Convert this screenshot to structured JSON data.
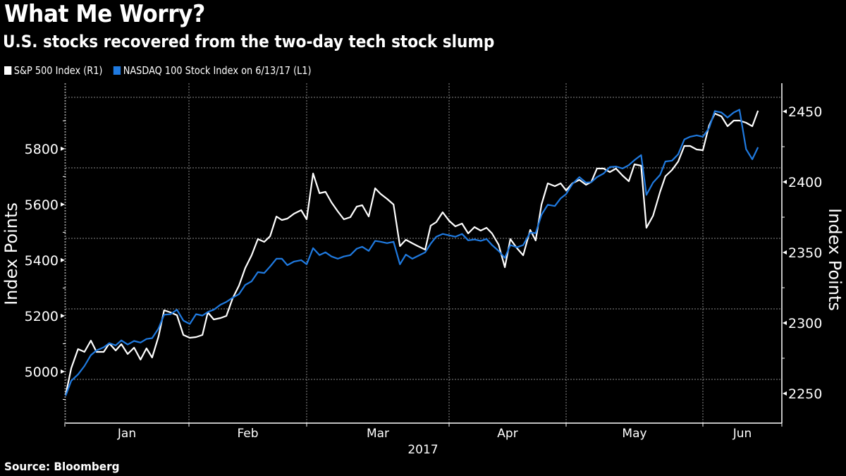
{
  "header": {
    "title": "What Me Worry?",
    "subtitle": "U.S. stocks recovered from the two-day tech stock slump"
  },
  "legend": [
    {
      "label": "S&P 500 Index (R1)",
      "color": "#ffffff"
    },
    {
      "label": "NASDAQ 100 Stock Index on 6/13/17 (L1)",
      "color": "#1f7ae0"
    }
  ],
  "footer": {
    "source": "Source: Bloomberg"
  },
  "chart_data": {
    "type": "line",
    "title": "What Me Worry?",
    "subtitle": "U.S. stocks recovered from the two-day tech stock slump",
    "background": "#000000",
    "grid": true,
    "legend_position": "top-left",
    "x": {
      "unit": "days since Jan 1, 2017",
      "range": [
        0,
        166
      ],
      "tick_labels": [
        "Jan",
        "Feb",
        "Mar",
        "Apr",
        "May",
        "Jun"
      ],
      "month_starts": [
        0,
        31,
        59,
        90,
        120,
        151
      ],
      "year_label": "2017",
      "values": [
        0.2,
        1.6,
        3.3,
        4.9,
        6.5,
        7.9,
        9.7,
        11.1,
        12.7,
        14.1,
        15.7,
        17.3,
        18.9,
        20.4,
        21.8,
        23.4,
        24.8,
        26.4,
        28.0,
        29.6,
        31.2,
        32.7,
        34.2,
        35.5,
        36.9,
        38.5,
        39.9,
        41.4,
        42.9,
        44.4,
        45.9,
        47.4,
        48.9,
        50.3,
        51.8,
        53.1,
        54.4,
        56.0,
        57.7,
        59.0,
        60.4,
        61.8,
        63.1,
        64.4,
        65.8,
        67.1,
        68.5,
        69.9,
        71.1,
        72.5,
        73.9,
        75.1,
        76.5,
        77.9,
        79.3,
        80.6,
        82.0,
        83.2,
        84.8,
        86.0,
        87.2,
        88.6,
        90.0,
        91.6,
        93.3,
        94.9,
        96.5,
        98.1,
        99.6,
        101.0,
        102.7,
        104.3,
        105.7,
        107.4,
        109.0,
        110.8,
        112.2,
        113.7,
        115.3,
        117.1,
        118.6,
        120.0,
        121.4,
        123.0,
        124.5,
        125.7,
        127.0,
        128.5,
        129.9,
        131.3,
        132.8,
        134.2,
        135.5,
        137.0,
        138.2,
        139.7,
        141.3,
        142.5,
        144.0,
        145.4,
        146.8,
        148.1,
        149.6,
        151.0,
        152.4,
        153.7,
        155.2,
        156.6,
        158.0,
        159.3,
        160.8,
        162.2,
        163.5
      ]
    },
    "y_left": {
      "label": "Index Points",
      "range": [
        4815,
        6035
      ],
      "ticks": [
        5000,
        5200,
        5400,
        5600,
        5800
      ],
      "minor_ticks": [
        4900,
        5100,
        5300,
        5500,
        5700,
        5900
      ]
    },
    "y_right": {
      "label": "Index Points",
      "range": [
        2229,
        2470
      ],
      "ticks": [
        2250,
        2300,
        2350,
        2400,
        2450
      ],
      "minor_ticks": [
        2275,
        2325,
        2375,
        2425
      ],
      "gridlines": [
        2260,
        2310,
        2360,
        2410,
        2460
      ]
    },
    "series": [
      {
        "name": "S&P 500 Index (R1)",
        "axis": "right",
        "color": "#ffffff",
        "values": [
          2249,
          2268,
          2281.5,
          2279.5,
          2287.5,
          2279.5,
          2279.5,
          2285.5,
          2280.5,
          2285,
          2278,
          2282.5,
          2274,
          2282,
          2275.5,
          2290.5,
          2309,
          2307.5,
          2305.5,
          2291.5,
          2289.5,
          2290,
          2291.5,
          2307.5,
          2302.5,
          2303.5,
          2305,
          2317.5,
          2326.5,
          2339,
          2348,
          2359.5,
          2357.5,
          2361.5,
          2375.5,
          2373,
          2374,
          2377.5,
          2380,
          2373.5,
          2406,
          2392,
          2393,
          2385.5,
          2379,
          2373.5,
          2375,
          2382.5,
          2383.5,
          2375.5,
          2395.5,
          2391.5,
          2388,
          2384,
          2354.5,
          2359,
          2356.5,
          2354.5,
          2352,
          2369,
          2371.5,
          2378.5,
          2372.5,
          2368.5,
          2370.5,
          2363.5,
          2368,
          2365.5,
          2367.5,
          2363.5,
          2355.5,
          2339.5,
          2359.5,
          2353,
          2348,
          2366,
          2358.5,
          2384,
          2399,
          2397,
          2399,
          2394,
          2399,
          2401.5,
          2398,
          2400,
          2409.5,
          2409.5,
          2407,
          2409.5,
          2404.5,
          2400.5,
          2412.5,
          2411.5,
          2367.5,
          2376,
          2393,
          2404,
          2408.5,
          2414.5,
          2425.5,
          2425.5,
          2423,
          2422.5,
          2440,
          2448.5,
          2446.5,
          2439.5,
          2443.5,
          2443.5,
          2442,
          2439.5,
          2450.5
        ]
      },
      {
        "name": "NASDAQ 100 Stock Index on 6/13/17 (L1)",
        "axis": "left",
        "color": "#1f7ae0",
        "values": [
          4913,
          4967,
          4990,
          5020,
          5059,
          5076,
          5087,
          5102,
          5094,
          5112,
          5097,
          5110,
          5104,
          5117,
          5120,
          5155,
          5204,
          5206,
          5222,
          5183,
          5171,
          5206,
          5201,
          5214,
          5222,
          5240,
          5250,
          5265,
          5278,
          5311,
          5324,
          5357,
          5354,
          5377,
          5405,
          5405,
          5382,
          5395,
          5400,
          5385,
          5443,
          5418,
          5428,
          5413,
          5405,
          5413,
          5418,
          5441,
          5448,
          5433,
          5469,
          5466,
          5461,
          5466,
          5385,
          5420,
          5405,
          5415,
          5428,
          5459,
          5484,
          5494,
          5489,
          5484,
          5494,
          5471,
          5474,
          5469,
          5476,
          5454,
          5433,
          5408,
          5454,
          5446,
          5454,
          5499,
          5497,
          5563,
          5599,
          5594,
          5622,
          5637,
          5673,
          5698,
          5678,
          5680,
          5698,
          5711,
          5734,
          5736,
          5729,
          5741,
          5759,
          5777,
          5634,
          5678,
          5706,
          5754,
          5757,
          5780,
          5833,
          5843,
          5848,
          5843,
          5874,
          5935,
          5930,
          5912,
          5930,
          5940,
          5798,
          5762,
          5805
        ]
      }
    ]
  }
}
